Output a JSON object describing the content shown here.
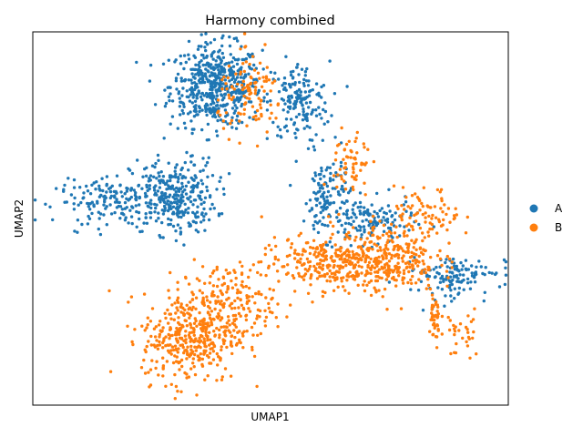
{
  "chart_data": {
    "type": "scatter",
    "title": "Harmony combined",
    "xlabel": "UMAP1",
    "ylabel": "UMAP2",
    "xlim": [
      0,
      10
    ],
    "ylim": [
      0,
      10
    ],
    "grid": false,
    "legend_position": "right",
    "series": [
      {
        "name": "A",
        "color": "#1f77b4",
        "clusters": [
          {
            "cx": 3.85,
            "cy": 8.55,
            "sx": 0.48,
            "sy": 0.55,
            "n": 520
          },
          {
            "cx": 5.6,
            "cy": 8.1,
            "sx": 0.32,
            "sy": 0.55,
            "n": 160
          },
          {
            "cx": 2.95,
            "cy": 5.6,
            "sx": 0.45,
            "sy": 0.5,
            "n": 320
          },
          {
            "cx": 1.7,
            "cy": 5.45,
            "sx": 0.6,
            "sy": 0.28,
            "n": 150
          },
          {
            "cx": 6.2,
            "cy": 5.6,
            "sx": 0.25,
            "sy": 0.55,
            "n": 120
          },
          {
            "cx": 7.1,
            "cy": 4.9,
            "sx": 0.45,
            "sy": 0.3,
            "n": 130
          },
          {
            "cx": 8.9,
            "cy": 3.6,
            "sx": 0.55,
            "sy": 0.2,
            "n": 90
          },
          {
            "cx": 8.65,
            "cy": 3.1,
            "sx": 0.3,
            "sy": 0.3,
            "n": 40
          }
        ]
      },
      {
        "name": "B",
        "color": "#ff7f0e",
        "clusters": [
          {
            "cx": 3.3,
            "cy": 1.8,
            "sx": 0.5,
            "sy": 0.6,
            "n": 360
          },
          {
            "cx": 4.1,
            "cy": 2.7,
            "sx": 0.5,
            "sy": 0.55,
            "n": 200
          },
          {
            "cx": 6.0,
            "cy": 3.8,
            "sx": 0.6,
            "sy": 0.35,
            "n": 220
          },
          {
            "cx": 7.4,
            "cy": 3.95,
            "sx": 0.55,
            "sy": 0.45,
            "n": 330
          },
          {
            "cx": 8.3,
            "cy": 5.1,
            "sx": 0.35,
            "sy": 0.35,
            "n": 80
          },
          {
            "cx": 6.7,
            "cy": 6.4,
            "sx": 0.2,
            "sy": 0.55,
            "n": 60
          },
          {
            "cx": 4.6,
            "cy": 8.3,
            "sx": 0.35,
            "sy": 0.5,
            "n": 110
          },
          {
            "cx": 8.45,
            "cy": 2.2,
            "sx": 0.07,
            "sy": 0.45,
            "n": 40
          },
          {
            "cx": 9.05,
            "cy": 1.9,
            "sx": 0.18,
            "sy": 0.35,
            "n": 30
          }
        ]
      }
    ]
  }
}
